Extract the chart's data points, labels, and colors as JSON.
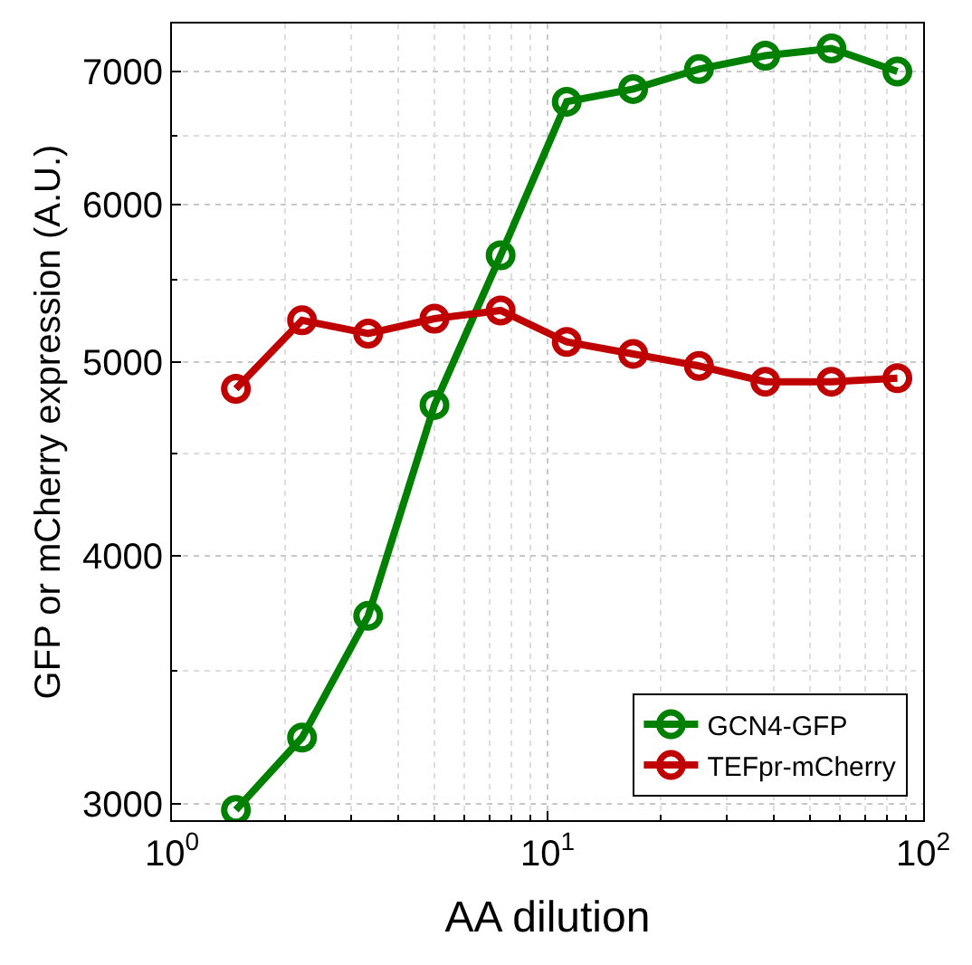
{
  "chart_data": {
    "type": "line",
    "xlabel": "AA dilution",
    "ylabel": "GFP or mCherry expression (A.U.)",
    "x": [
      1.48,
      2.22,
      3.33,
      5,
      7.5,
      11.25,
      16.9,
      25.3,
      38,
      57,
      85.4
    ],
    "series": [
      {
        "name": "GCN4-GFP",
        "color": "#008000",
        "values": [
          2980,
          3240,
          3730,
          4760,
          5660,
          6760,
          6860,
          7020,
          7130,
          7190,
          7000
        ]
      },
      {
        "name": "TEFpr-mCherry",
        "color": "#c00000",
        "values": [
          4850,
          5250,
          5170,
          5260,
          5310,
          5120,
          5050,
          4980,
          4890,
          4890,
          4910
        ]
      }
    ],
    "log": "xy",
    "xlim": [
      1,
      100
    ],
    "ylim": [
      2945,
      7400
    ],
    "xticks": [
      {
        "value": 1,
        "label": "10$^{0}$"
      },
      {
        "value": 10,
        "label": "10$^{1}$"
      },
      {
        "value": 100,
        "label": "10$^{2}$"
      }
    ],
    "yticks": [
      3000,
      4000,
      5000,
      6000,
      7000
    ],
    "grid": true,
    "legend": "bottom right",
    "marker": "circle",
    "line_style": "solid"
  }
}
